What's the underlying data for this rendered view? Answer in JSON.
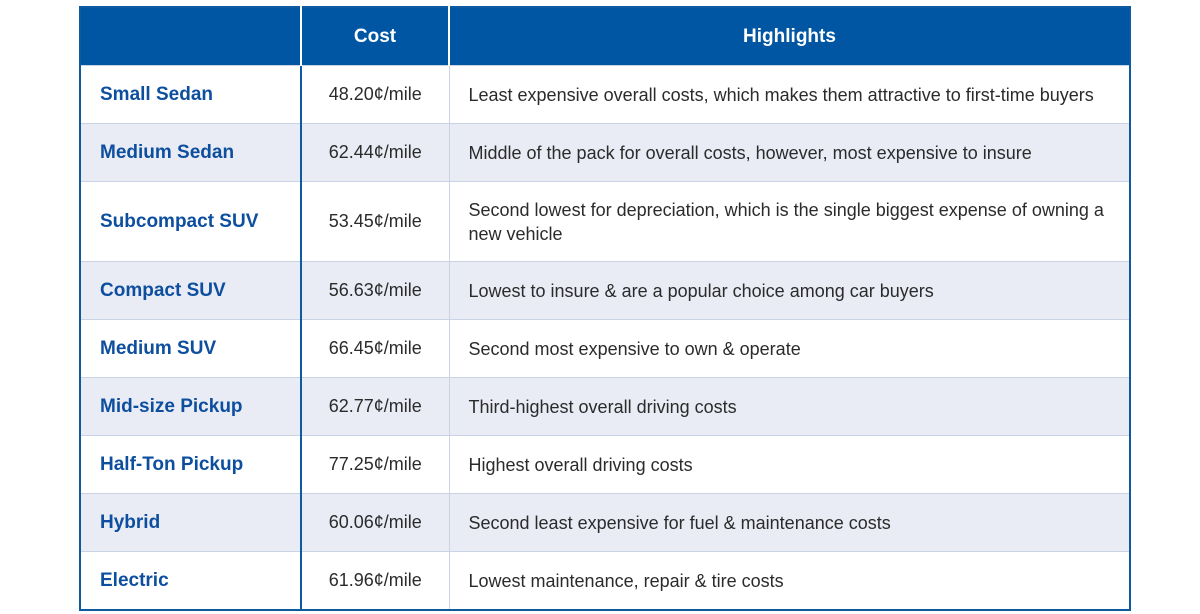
{
  "table": {
    "headers": [
      "",
      "Cost",
      "Highlights"
    ],
    "rows": [
      {
        "vehicle": "Small Sedan",
        "cost": "48.20¢/mile",
        "highlight": "Least expensive overall costs, which makes them attractive to first-time buyers"
      },
      {
        "vehicle": "Medium Sedan",
        "cost": "62.44¢/mile",
        "highlight": "Middle of the pack for overall costs, however, most expensive to insure"
      },
      {
        "vehicle": "Subcompact SUV",
        "cost": "53.45¢/mile",
        "highlight": "Second lowest for depreciation, which is the single biggest expense of owning a new vehicle"
      },
      {
        "vehicle": "Compact SUV",
        "cost": "56.63¢/mile",
        "highlight": "Lowest to insure & are a popular choice among car buyers"
      },
      {
        "vehicle": "Medium SUV",
        "cost": "66.45¢/mile",
        "highlight": "Second most expensive to own & operate"
      },
      {
        "vehicle": "Mid-size Pickup",
        "cost": "62.77¢/mile",
        "highlight": "Third-highest overall driving costs"
      },
      {
        "vehicle": "Half-Ton Pickup",
        "cost": "77.25¢/mile",
        "highlight": "Highest overall driving costs"
      },
      {
        "vehicle": "Hybrid",
        "cost": "60.06¢/mile",
        "highlight": "Second least expensive for fuel & maintenance costs"
      },
      {
        "vehicle": "Electric",
        "cost": "61.96¢/mile",
        "highlight": "Lowest maintenance, repair & tire costs"
      }
    ]
  },
  "colors": {
    "header_bg": "#0056a3",
    "vehicle_text": "#0d4f9e",
    "stripe": "#e9ecf5"
  }
}
